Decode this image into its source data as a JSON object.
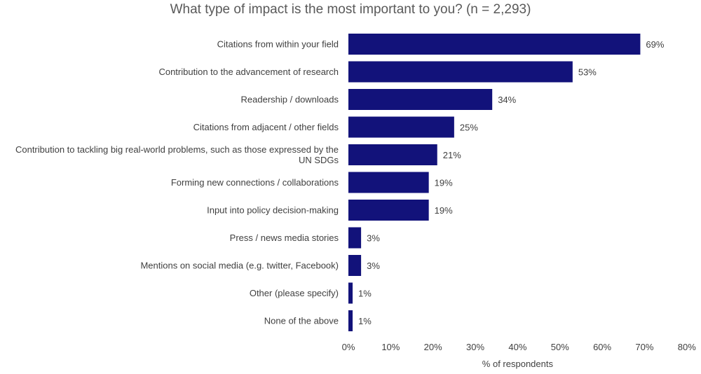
{
  "chart_data": {
    "type": "bar",
    "orientation": "horizontal",
    "title": "What type of impact is the most important to you? (n = 2,293)",
    "xlabel": "% of respondents",
    "ylabel": "",
    "xlim": [
      0,
      80
    ],
    "xticks": [
      "0%",
      "10%",
      "20%",
      "30%",
      "40%",
      "50%",
      "60%",
      "70%",
      "80%"
    ],
    "grid": false,
    "bar_color": "#12127a",
    "categories": [
      "Citations from within your field",
      "Contribution to the advancement of research",
      "Readership / downloads",
      "Citations from adjacent / other fields",
      "Contribution to tackling big real-world problems, such as those expressed by the UN SDGs",
      "Forming new connections / collaborations",
      "Input into policy decision-making",
      "Press / news media stories",
      "Mentions on social media (e.g. twitter, Facebook)",
      "Other (please specify)",
      "None of the above"
    ],
    "values": [
      69,
      53,
      34,
      25,
      21,
      19,
      19,
      3,
      3,
      1,
      1
    ],
    "value_labels": [
      "69%",
      "53%",
      "34%",
      "25%",
      "21%",
      "19%",
      "19%",
      "3%",
      "3%",
      "1%",
      "1%"
    ]
  }
}
